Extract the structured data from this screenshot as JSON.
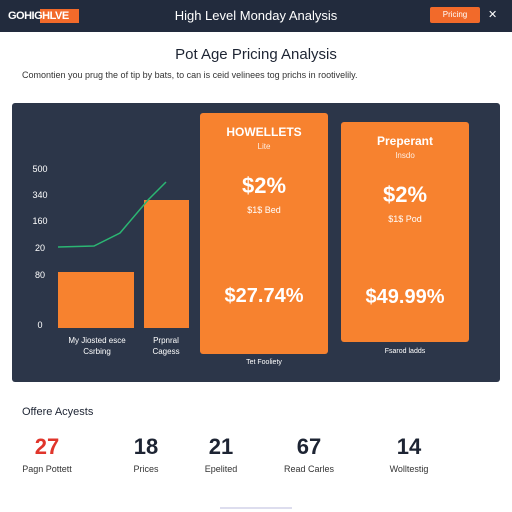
{
  "header": {
    "logo": "GOHIGHLVE",
    "title": "High Level Monday Analysis",
    "button": "Pricing"
  },
  "page": {
    "title": "Pot Age Pricing Analysis",
    "subtitle": "Comontien you prug the of tip by bats, to can is ceid velinees tog prichs in rootivelily."
  },
  "mini_chart": {
    "axis_labels": [
      "500",
      "340",
      "160",
      "20",
      "80",
      "0"
    ],
    "bar_labels": [
      "My Jiosted esce Csrbing",
      "Prpnral Cagess"
    ]
  },
  "cards": [
    {
      "name": "HOWELLETS",
      "tag": "Lite",
      "rate": "$2%",
      "note": "$1$ Bed",
      "price": "$27.74%",
      "caption": "Tet Fooliety"
    },
    {
      "name": "Preperant",
      "tag": "Insdo",
      "rate": "$2%",
      "note": "$1$ Pod",
      "price": "$49.99%",
      "caption": "Fsarod ladds"
    }
  ],
  "stats": {
    "title": "Offere Acyests",
    "items": [
      {
        "value": "27",
        "label": "Pagn Pottett"
      },
      {
        "value": "18",
        "label": "Prices"
      },
      {
        "value": "21",
        "label": "Epelited"
      },
      {
        "value": "67",
        "label": "Read Carles"
      },
      {
        "value": "14",
        "label": "Wolltestig"
      }
    ]
  }
}
